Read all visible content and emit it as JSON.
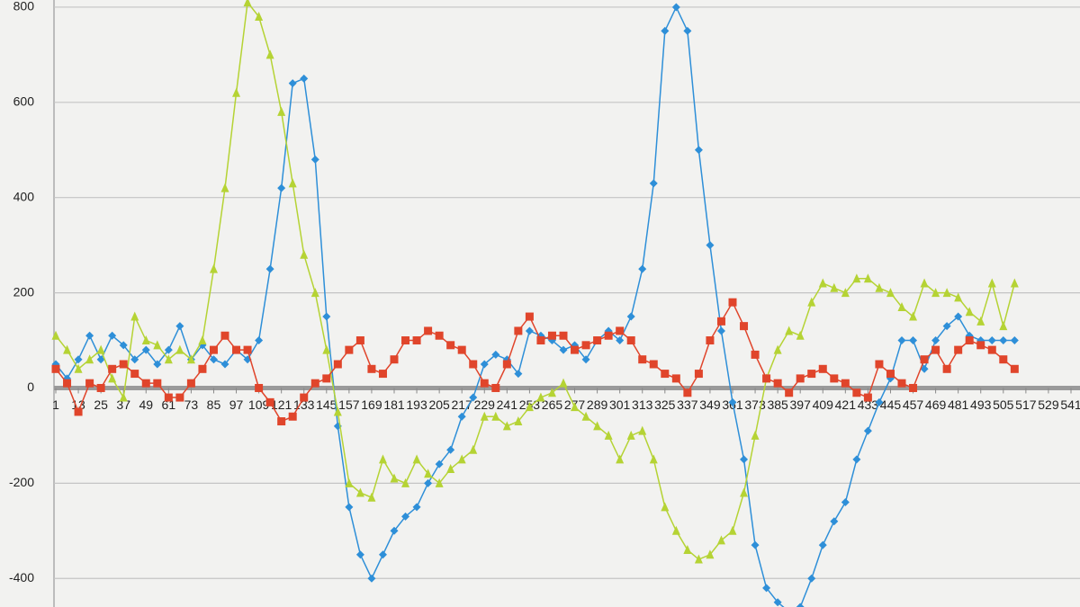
{
  "chart_data": {
    "type": "line",
    "x": [
      1,
      7,
      13,
      19,
      25,
      31,
      37,
      43,
      49,
      55,
      61,
      67,
      73,
      79,
      85,
      91,
      97,
      103,
      109,
      115,
      121,
      127,
      133,
      139,
      145,
      151,
      157,
      163,
      169,
      175,
      181,
      187,
      193,
      199,
      205,
      211,
      217,
      223,
      229,
      235,
      241,
      247,
      253,
      259,
      265,
      271,
      277,
      283,
      289,
      295,
      301,
      307,
      313,
      319,
      325,
      331,
      337,
      343,
      349,
      355,
      361,
      367,
      373,
      379,
      385,
      391,
      397,
      403,
      409,
      415,
      421,
      427,
      433,
      439,
      445,
      451,
      457,
      463,
      469,
      475,
      481,
      487,
      493,
      499,
      505,
      511
    ],
    "series": [
      {
        "color": "#2e8fd8",
        "marker": "diamond",
        "values": [
          50,
          20,
          60,
          110,
          60,
          110,
          90,
          60,
          80,
          50,
          80,
          130,
          60,
          90,
          60,
          50,
          80,
          60,
          100,
          250,
          420,
          640,
          650,
          480,
          150,
          -80,
          -250,
          -350,
          -400,
          -350,
          -300,
          -270,
          -250,
          -200,
          -160,
          -130,
          -60,
          -20,
          50,
          70,
          60,
          30,
          120,
          110,
          100,
          80,
          90,
          60,
          100,
          120,
          100,
          150,
          250,
          430,
          750,
          800,
          750,
          500,
          300,
          120,
          -30,
          -150,
          -330,
          -420,
          -450,
          -470,
          -460,
          -400,
          -330,
          -280,
          -240,
          -150,
          -90,
          -30,
          20,
          100,
          100,
          40,
          100,
          130,
          150,
          110,
          100,
          100,
          100,
          100
        ]
      },
      {
        "color": "#b5d334",
        "marker": "triangle",
        "values": [
          110,
          80,
          40,
          60,
          80,
          20,
          -20,
          150,
          100,
          90,
          60,
          80,
          60,
          100,
          250,
          420,
          620,
          810,
          780,
          700,
          580,
          430,
          280,
          200,
          80,
          -50,
          -200,
          -220,
          -230,
          -150,
          -190,
          -200,
          -150,
          -180,
          -200,
          -170,
          -150,
          -130,
          -60,
          -60,
          -80,
          -70,
          -40,
          -20,
          -10,
          10,
          -40,
          -60,
          -80,
          -100,
          -150,
          -100,
          -90,
          -150,
          -250,
          -300,
          -340,
          -360,
          -350,
          -320,
          -300,
          -220,
          -100,
          20,
          80,
          120,
          110,
          180,
          220,
          210,
          200,
          230,
          230,
          210,
          200,
          170,
          150,
          220,
          200,
          200,
          190,
          160,
          140,
          220,
          130,
          220
        ]
      },
      {
        "color": "#e0452b",
        "marker": "square",
        "values": [
          40,
          10,
          -50,
          10,
          0,
          40,
          50,
          30,
          10,
          10,
          -20,
          -20,
          10,
          40,
          80,
          110,
          80,
          80,
          0,
          -30,
          -70,
          -60,
          -20,
          10,
          20,
          50,
          80,
          100,
          40,
          30,
          60,
          100,
          100,
          120,
          110,
          90,
          80,
          50,
          10,
          0,
          50,
          120,
          150,
          100,
          110,
          110,
          80,
          90,
          100,
          110,
          120,
          100,
          60,
          50,
          30,
          20,
          -10,
          30,
          100,
          140,
          180,
          130,
          70,
          20,
          10,
          -10,
          20,
          30,
          40,
          20,
          10,
          -10,
          -20,
          50,
          30,
          10,
          0,
          60,
          80,
          40,
          80,
          100,
          90,
          80,
          60,
          40
        ]
      }
    ],
    "xlim": [
      1,
      541
    ],
    "xticks": [
      1,
      13,
      25,
      37,
      49,
      61,
      73,
      85,
      97,
      109,
      121,
      133,
      145,
      157,
      169,
      181,
      193,
      205,
      217,
      229,
      241,
      253,
      265,
      277,
      289,
      301,
      313,
      325,
      337,
      349,
      361,
      373,
      385,
      397,
      409,
      421,
      433,
      445,
      457,
      469,
      481,
      493,
      505,
      517,
      529,
      541
    ],
    "ylim": [
      -460,
      815
    ],
    "yticks": [
      -400,
      -200,
      0,
      200,
      400,
      600,
      800
    ],
    "grid": true
  }
}
